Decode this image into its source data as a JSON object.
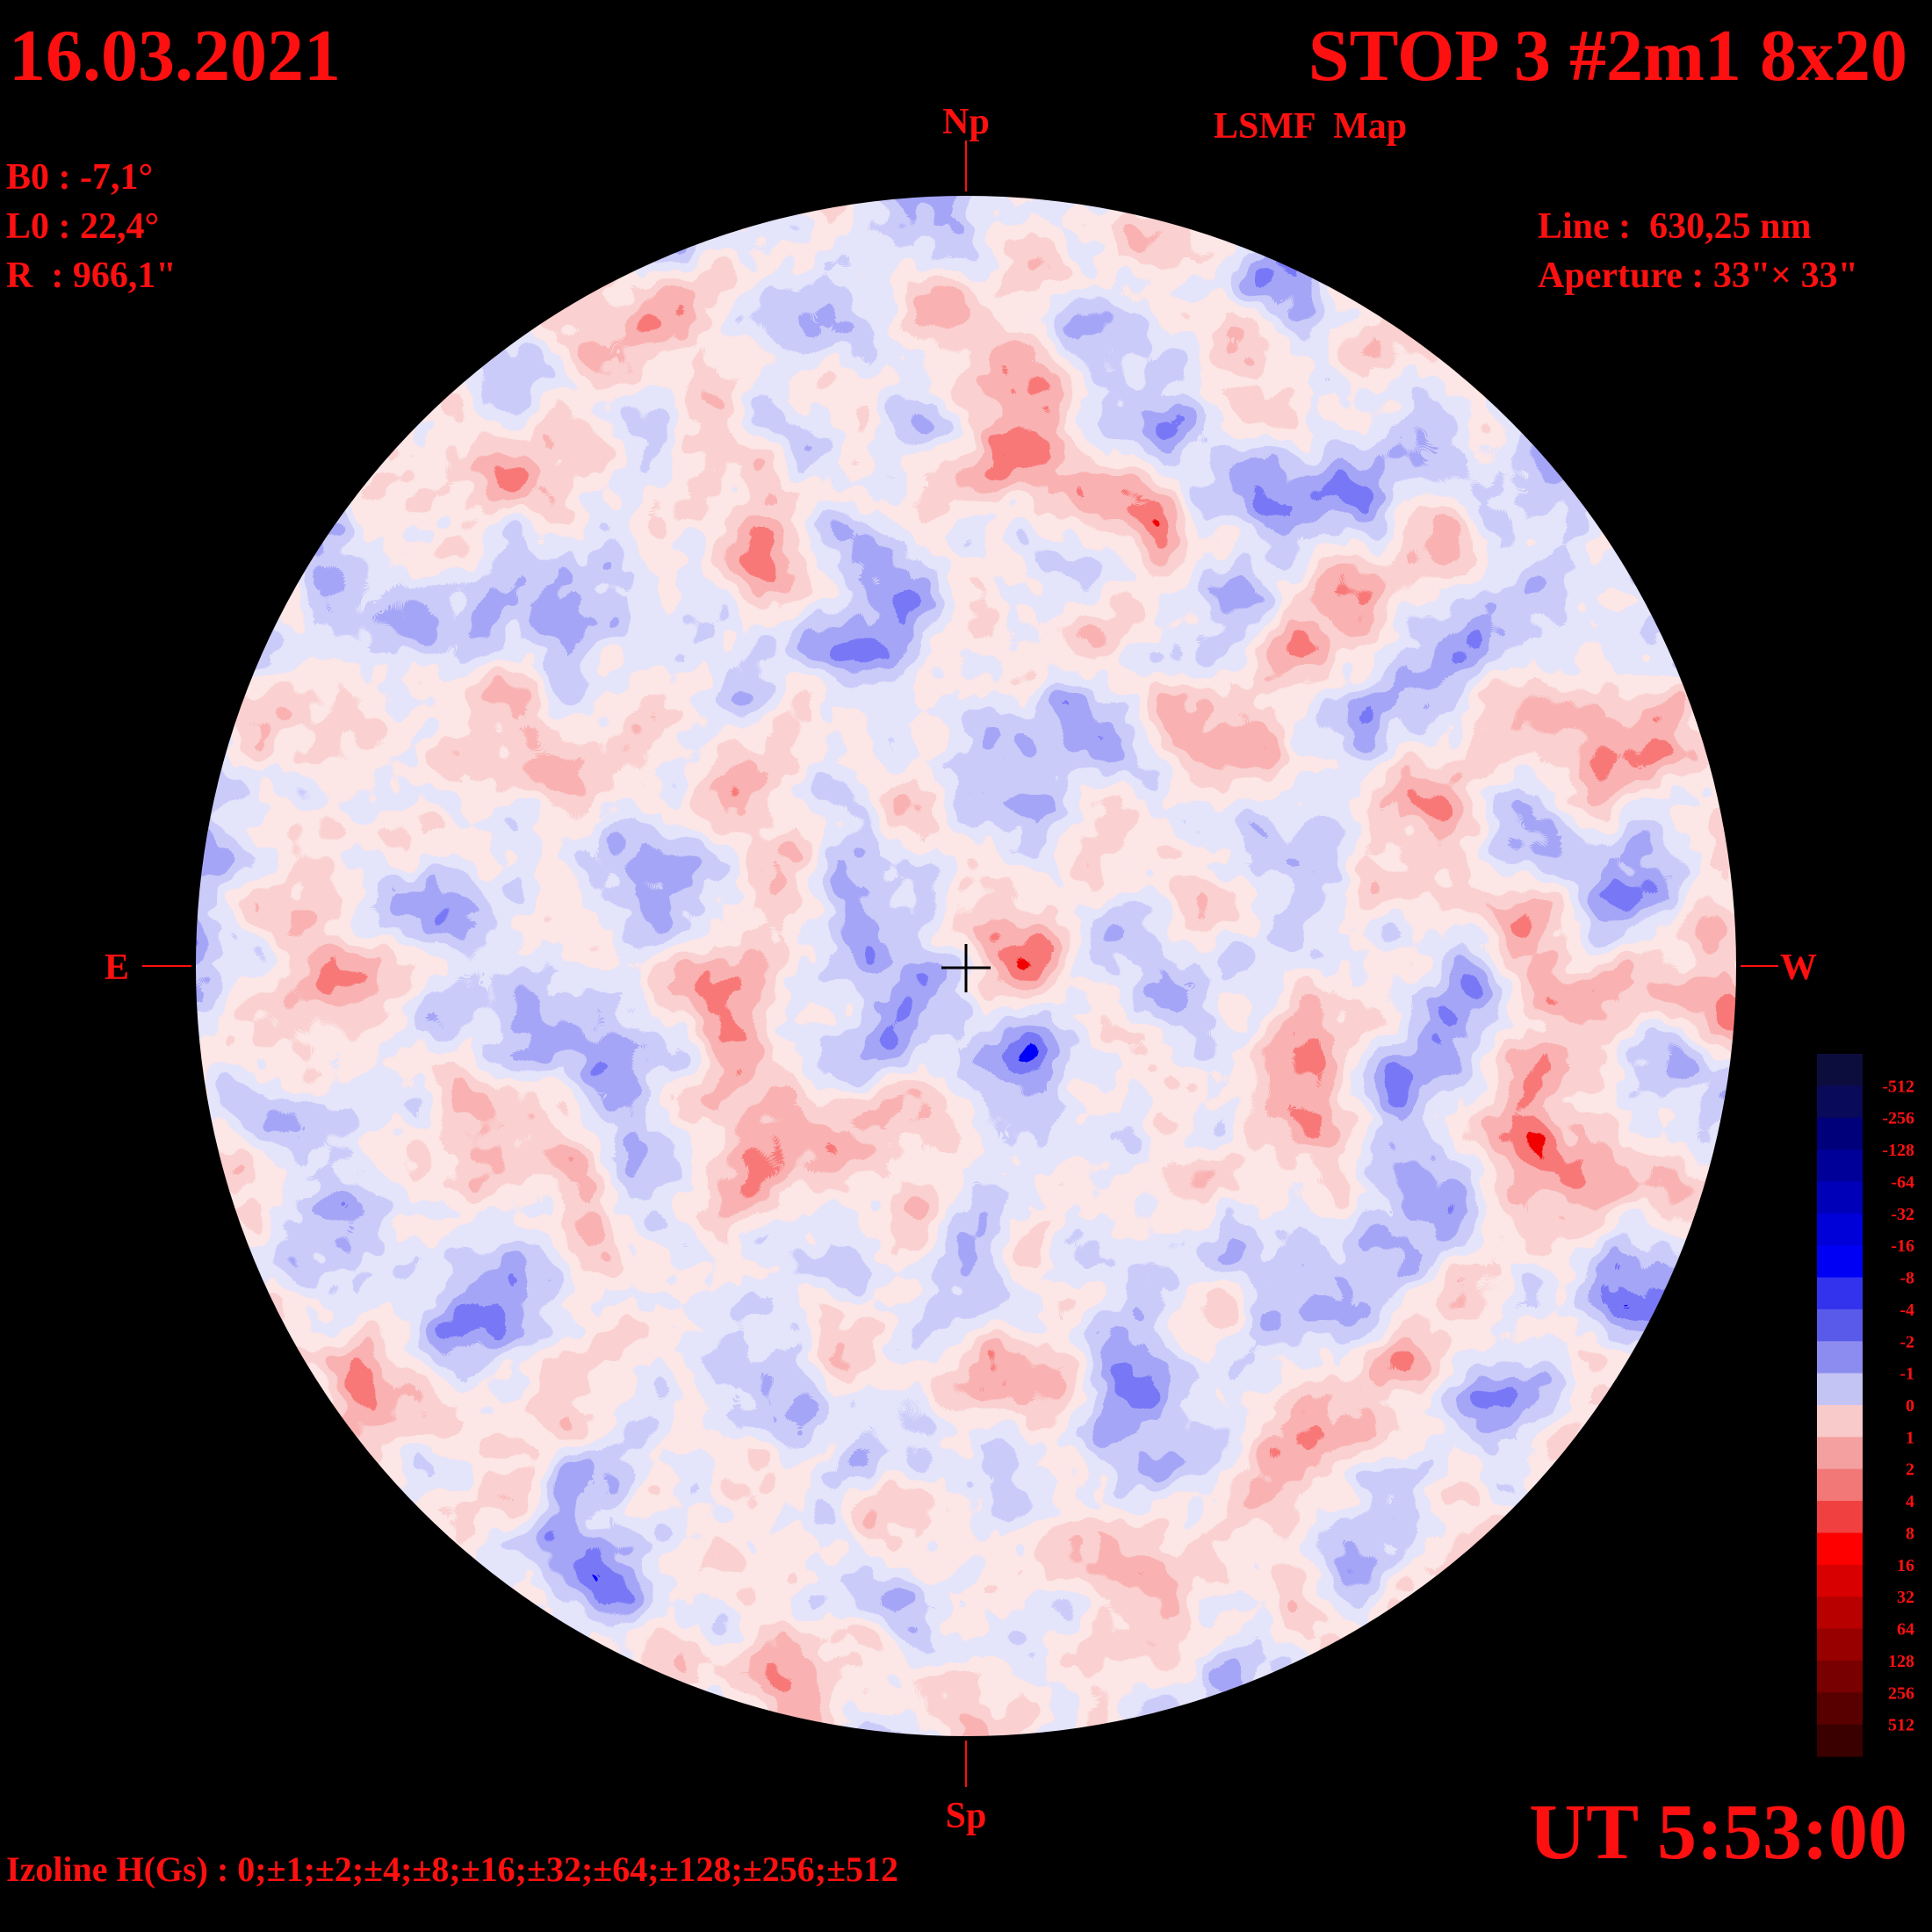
{
  "header": {
    "date": "16.03.2021",
    "title": "STOP 3 #2m1 8x20",
    "subtitle": "LSMF  Map"
  },
  "parameters": [
    "B0 : -7,1°",
    "L0 : 22,4°",
    "R  : 966,1\""
  ],
  "instrument": [
    "Line :  630,25 nm",
    "Aperture : 33\"× 33\""
  ],
  "compass": {
    "north": "Np",
    "south": "Sp",
    "east": "E",
    "west": "W"
  },
  "colorbar": {
    "labels": [
      -512,
      -256,
      -128,
      -64,
      -32,
      -16,
      -8,
      -4,
      -2,
      -1,
      0,
      1,
      2,
      4,
      8,
      16,
      32,
      64,
      128,
      256,
      512
    ],
    "colors": [
      "#0d0d3d",
      "#0a0a5a",
      "#00007a",
      "#000099",
      "#0000b8",
      "#0000d8",
      "#0000f5",
      "#3333ee",
      "#5a5aea",
      "#8c8cf0",
      "#c4c4f4",
      "#f9caca",
      "#f5a0a0",
      "#f27777",
      "#f04040",
      "#ff0000",
      "#d80000",
      "#b80000",
      "#980000",
      "#780000",
      "#580000",
      "#3a0000"
    ]
  },
  "time": "UT 5:53:00",
  "izoline": "Izoline H(Gs) : 0;±1;±2;±4;±8;±16;±32;±64;±128;±256;±512"
}
